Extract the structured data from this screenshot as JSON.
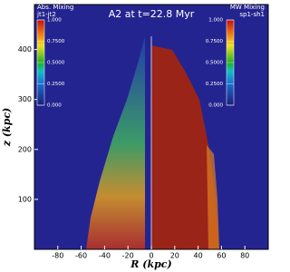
{
  "chart_data": {
    "type": "field",
    "title": "A2 at t=22.8 Myr",
    "xlabel": "R (kpc)",
    "ylabel": "z (kpc)",
    "xlim": [
      -100,
      100
    ],
    "ylim": [
      0,
      490
    ],
    "xticks": [
      -80,
      -60,
      -40,
      -20,
      0,
      20,
      40,
      60,
      80
    ],
    "yticks": [
      100,
      200,
      300,
      400
    ],
    "colorbars": [
      {
        "label": "Abs. Mixing",
        "sublabel": "jt1-jt2",
        "lim": [
          0,
          1
        ],
        "ticks": [
          {
            "value": 1,
            "label": "1.000"
          },
          {
            "value": 0.75,
            "label": "0.7500"
          },
          {
            "value": 0.5,
            "label": "0.5000"
          },
          {
            "value": 0.25,
            "label": "0.2500"
          },
          {
            "value": 0,
            "label": "0.000"
          }
        ]
      },
      {
        "label": "MW Mixing",
        "sublabel": "sp1-sh1",
        "lim": [
          0,
          1
        ],
        "ticks": [
          {
            "value": 1,
            "label": "1.000"
          },
          {
            "value": 0.75,
            "label": "0.7500"
          },
          {
            "value": 0.5,
            "label": "0.5000"
          },
          {
            "value": 0.25,
            "label": "0.2500"
          },
          {
            "value": 0,
            "label": "0.000"
          }
        ]
      }
    ]
  }
}
